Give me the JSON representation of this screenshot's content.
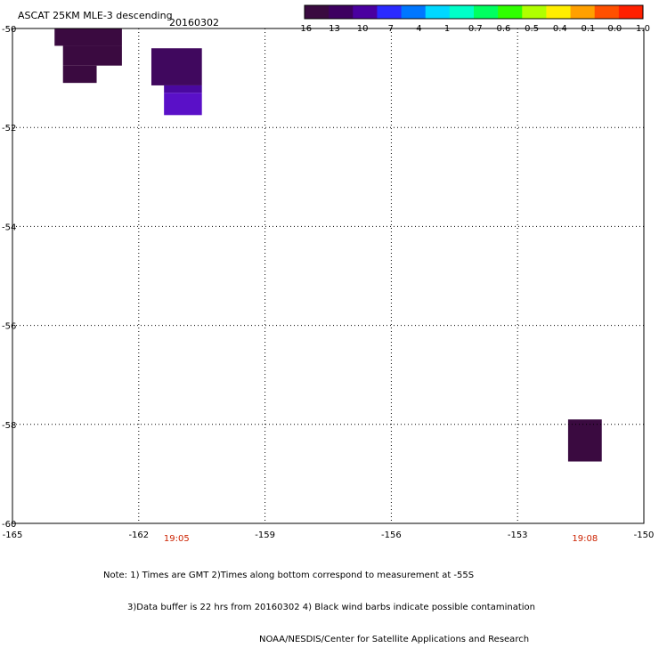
{
  "title": {
    "product": "ASCAT 25KM MLE-3 descending",
    "date": "20160302"
  },
  "colorbar": {
    "tick_labels": [
      "-16",
      "-13",
      "-10",
      "-7",
      "-4",
      "-1",
      "-0.7",
      "-0.6",
      "-0.5",
      "-0.4",
      "-0.1",
      "0.0",
      "1.0"
    ],
    "colors": [
      "#3a0a40",
      "#3d0060",
      "#4a00a0",
      "#2a2aff",
      "#0077ff",
      "#00d8ff",
      "#00ffc8",
      "#00ff60",
      "#30ff00",
      "#b0ff00",
      "#ffee00",
      "#ffa000",
      "#ff5000",
      "#ff2000"
    ]
  },
  "map": {
    "lon_range": [
      -165,
      -150
    ],
    "lat_range": [
      -60,
      -50
    ],
    "x_ticks": [
      "-165",
      "-162",
      "-159",
      "-156",
      "-153",
      "-150"
    ],
    "y_ticks": [
      "-50",
      "-52",
      "-54",
      "-56",
      "-58",
      "-60"
    ],
    "grid": "dotted",
    "time_labels": [
      {
        "text": "19:05",
        "lon": -161.1
      },
      {
        "text": "19:08",
        "lon": -151.4
      }
    ],
    "cells": [
      {
        "lon": [
          -164.0,
          -162.4
        ],
        "lat": [
          -50.35,
          -50.0
        ],
        "color": "#3a0a40"
      },
      {
        "lon": [
          -163.8,
          -162.4
        ],
        "lat": [
          -50.75,
          -50.35
        ],
        "color": "#3a0a40"
      },
      {
        "lon": [
          -163.8,
          -163.0
        ],
        "lat": [
          -51.1,
          -50.75
        ],
        "color": "#3a0a40"
      },
      {
        "lon": [
          -161.7,
          -160.5
        ],
        "lat": [
          -51.15,
          -50.4
        ],
        "color": "#40085e"
      },
      {
        "lon": [
          -161.4,
          -160.5
        ],
        "lat": [
          -51.3,
          -51.15
        ],
        "color": "#4a08a0"
      },
      {
        "lon": [
          -161.4,
          -160.5
        ],
        "lat": [
          -51.75,
          -51.3
        ],
        "color": "#5a10c8"
      },
      {
        "lon": [
          -151.8,
          -151.0
        ],
        "lat": [
          -58.75,
          -57.9
        ],
        "color": "#3a0a40"
      }
    ]
  },
  "notes": {
    "line1": "Note: 1) Times are GMT 2)Times along bottom correspond to measurement at -55S",
    "line2": "3)Data buffer is 22 hrs from 20160302 4) Black wind barbs indicate possible contamination",
    "line3": "NOAA/NESDIS/Center for Satellite Applications and Research"
  }
}
